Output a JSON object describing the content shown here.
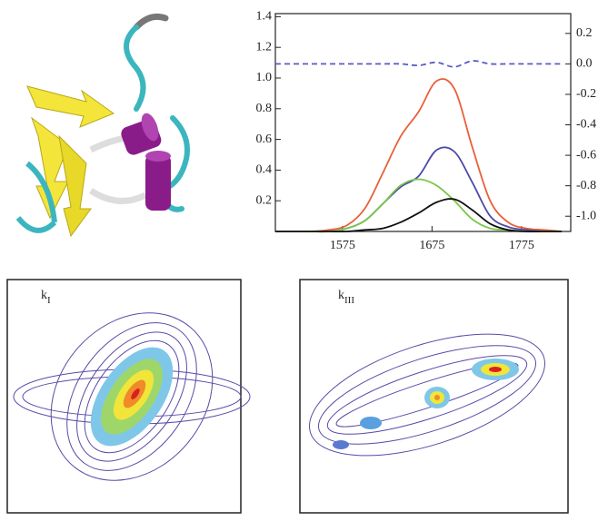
{
  "chart_data": {
    "type": "line",
    "x": [
      1500,
      1520,
      1540,
      1560,
      1580,
      1600,
      1620,
      1640,
      1660,
      1680,
      1700,
      1720,
      1740,
      1760,
      1780,
      1800,
      1820
    ],
    "series": [
      {
        "color": "#e8603a",
        "values": [
          0,
          0,
          0,
          0.01,
          0.04,
          0.15,
          0.38,
          0.62,
          0.78,
          0.98,
          0.93,
          0.55,
          0.2,
          0.06,
          0.02,
          0.01,
          0
        ]
      },
      {
        "color": "#4a4aa8",
        "values": [
          0,
          0,
          0,
          0,
          0.02,
          0.07,
          0.18,
          0.29,
          0.36,
          0.53,
          0.52,
          0.32,
          0.1,
          0.03,
          0.01,
          0,
          0
        ]
      },
      {
        "color": "#7ac74a",
        "values": [
          0,
          0,
          0,
          0,
          0.02,
          0.07,
          0.18,
          0.3,
          0.34,
          0.3,
          0.2,
          0.08,
          0.02,
          0.01,
          0,
          0,
          0
        ]
      },
      {
        "color": "#111111",
        "values": [
          0,
          0,
          0,
          0,
          0,
          0.01,
          0.02,
          0.06,
          0.12,
          0.19,
          0.21,
          0.14,
          0.05,
          0.01,
          0,
          0,
          0
        ]
      },
      {
        "color": "#5a5ac8",
        "axis": "y2",
        "dashed": true,
        "values": [
          0,
          0,
          0,
          0,
          0,
          0,
          0,
          0,
          -0.01,
          0.01,
          -0.02,
          0.02,
          0,
          0,
          0,
          0,
          0
        ]
      }
    ],
    "xlim": [
      1500,
      1830
    ],
    "xticks": [
      1575,
      1675,
      1775
    ],
    "ylim": [
      0,
      1.42
    ],
    "yticks": [
      {
        "value": 0.2,
        "label": "0.2"
      },
      {
        "value": 0.4,
        "label": "0.4"
      },
      {
        "value": 0.6,
        "label": "0.6"
      },
      {
        "value": 0.8,
        "label": "0.8"
      },
      {
        "value": 1.0,
        "label": "1.0"
      },
      {
        "value": 1.2,
        "label": "1.2"
      },
      {
        "value": 1.4,
        "label": "1.4"
      }
    ],
    "y2lim": [
      -1.1,
      0.33
    ],
    "y2ticks": [
      {
        "value": 0.2,
        "label": "0.2"
      },
      {
        "value": 0,
        "label": "0.0"
      },
      {
        "value": -0.2,
        "label": "-0.2"
      },
      {
        "value": -0.4,
        "label": "-0.4"
      },
      {
        "value": -0.6,
        "label": "-0.6"
      },
      {
        "value": -0.8,
        "label": "-0.8"
      },
      {
        "value": -1.0,
        "label": "-1.0"
      }
    ]
  },
  "panels": [
    {
      "label": "k",
      "subscript": "I"
    },
    {
      "label": "k",
      "subscript": "III"
    }
  ]
}
